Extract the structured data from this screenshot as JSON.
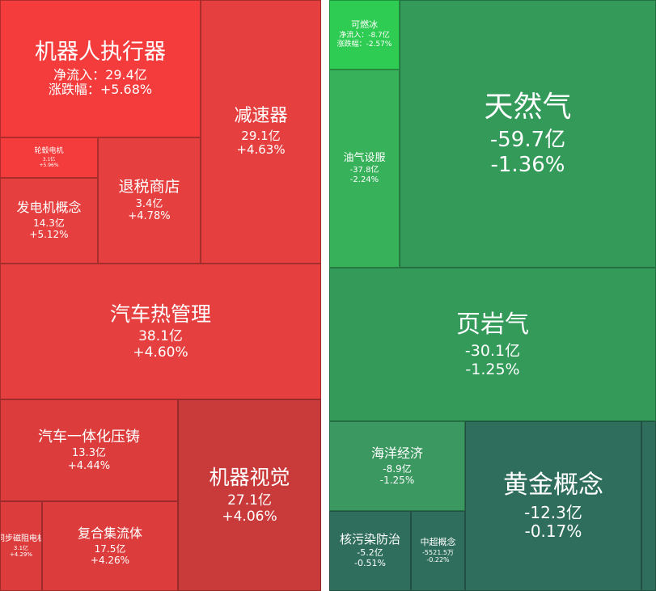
{
  "colors": {
    "red_bright": "#f43c3c",
    "red_mid": "#e5403f",
    "red": "#dc3c3c",
    "red_dark": "#c93a3a",
    "green_bright": "#2ecc52",
    "green_light": "#38b25a",
    "green": "#339a5a",
    "green_mid": "#3a9860",
    "green_dark": "#2f6e5c"
  },
  "chart_data": {
    "type": "treemap",
    "sectors": [
      {
        "name": "机器人执行器",
        "line1": "净流入：29.4亿",
        "line2": "涨跌幅：+5.68%",
        "net_inflow": 29.4,
        "change_pct": 5.68,
        "color": "red_bright"
      },
      {
        "name": "减速器",
        "line1": "29.1亿",
        "line2": "+4.63%",
        "net_inflow": 29.1,
        "change_pct": 4.63,
        "color": "red_mid"
      },
      {
        "name": "轮毂电机",
        "line1": "3.1亿",
        "line2": "+5.96%",
        "net_inflow": 3.1,
        "change_pct": 5.96,
        "color": "red_bright"
      },
      {
        "name": "发电机概念",
        "line1": "14.3亿",
        "line2": "+5.12%",
        "net_inflow": 14.3,
        "change_pct": 5.12,
        "color": "red_mid"
      },
      {
        "name": "退税商店",
        "line1": "3.4亿",
        "line2": "+4.78%",
        "net_inflow": 3.4,
        "change_pct": 4.78,
        "color": "red_mid"
      },
      {
        "name": "汽车热管理",
        "line1": "38.1亿",
        "line2": "+4.60%",
        "net_inflow": 38.1,
        "change_pct": 4.6,
        "color": "red_mid"
      },
      {
        "name": "汽车一体化压铸",
        "line1": "13.3亿",
        "line2": "+4.44%",
        "net_inflow": 13.3,
        "change_pct": 4.44,
        "color": "red"
      },
      {
        "name": "机器视觉",
        "line1": "27.1亿",
        "line2": "+4.06%",
        "net_inflow": 27.1,
        "change_pct": 4.06,
        "color": "red_dark"
      },
      {
        "name": "同步磁阻电机",
        "line1": "3.1亿",
        "line2": "+4.29%",
        "net_inflow": 3.1,
        "change_pct": 4.29,
        "color": "red"
      },
      {
        "name": "复合集流体",
        "line1": "17.5亿",
        "line2": "+4.26%",
        "net_inflow": 17.5,
        "change_pct": 4.26,
        "color": "red"
      },
      {
        "name": "可燃冰",
        "line1": "净流入：-8.7亿",
        "line2": "涨跌幅：-2.57%",
        "net_inflow": -8.7,
        "change_pct": -2.57,
        "color": "green_bright"
      },
      {
        "name": "油气设服",
        "line1": "-37.8亿",
        "line2": "-2.24%",
        "net_inflow": -37.8,
        "change_pct": -2.24,
        "color": "green_light"
      },
      {
        "name": "天然气",
        "line1": "-59.7亿",
        "line2": "-1.36%",
        "net_inflow": -59.7,
        "change_pct": -1.36,
        "color": "green"
      },
      {
        "name": "页岩气",
        "line1": "-30.1亿",
        "line2": "-1.25%",
        "net_inflow": -30.1,
        "change_pct": -1.25,
        "color": "green"
      },
      {
        "name": "海洋经济",
        "line1": "-8.9亿",
        "line2": "-1.25%",
        "net_inflow": -8.9,
        "change_pct": -1.25,
        "color": "green_mid"
      },
      {
        "name": "黄金概念",
        "line1": "-12.3亿",
        "line2": "-0.17%",
        "net_inflow": -12.3,
        "change_pct": -0.17,
        "color": "green_dark"
      },
      {
        "name": "核污染防治",
        "line1": "-5.2亿",
        "line2": "-0.51%",
        "net_inflow": -5.2,
        "change_pct": -0.51,
        "color": "green_dark"
      },
      {
        "name": "中超概念",
        "line1": "-5521.5万",
        "line2": "-0.22%",
        "net_inflow": -0.55215,
        "change_pct": -0.22,
        "color": "green_dark"
      },
      {
        "name": "",
        "line1": "",
        "line2": "",
        "color": "green_dark"
      }
    ]
  }
}
